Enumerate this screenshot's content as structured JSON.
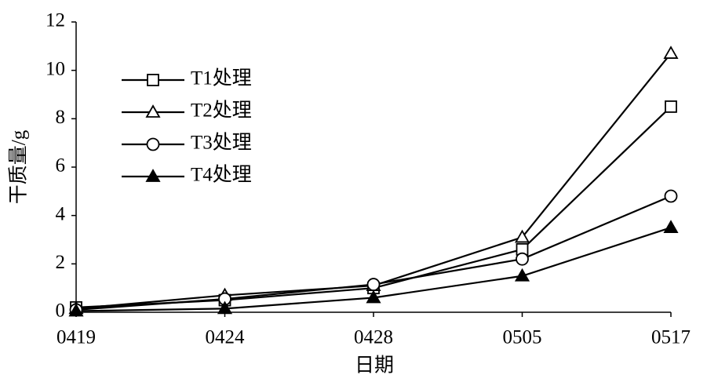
{
  "chart_data": {
    "type": "line",
    "categories": [
      "0419",
      "0424",
      "0428",
      "0505",
      "0517"
    ],
    "x_label": "日期",
    "y_label": "干质量/g",
    "ylim": [
      0,
      12
    ],
    "yticks": [
      0,
      2,
      4,
      6,
      8,
      10,
      12
    ],
    "grid": false,
    "legend": "upper-left",
    "series": [
      {
        "name": "T1处理",
        "color": "#000000",
        "marker": "square",
        "values": [
          0.2,
          0.5,
          1.0,
          2.6,
          8.5
        ]
      },
      {
        "name": "T2处理",
        "color": "#000000",
        "marker": "triangle",
        "values": [
          0.15,
          0.7,
          1.1,
          3.1,
          10.7
        ]
      },
      {
        "name": "T3处理",
        "color": "#000000",
        "marker": "circle",
        "values": [
          0.1,
          0.55,
          1.15,
          2.2,
          4.8
        ]
      },
      {
        "name": "T4处理",
        "color": "#000000",
        "marker": "filled-triangle",
        "values": [
          0.05,
          0.15,
          0.6,
          1.5,
          3.5
        ]
      }
    ]
  }
}
